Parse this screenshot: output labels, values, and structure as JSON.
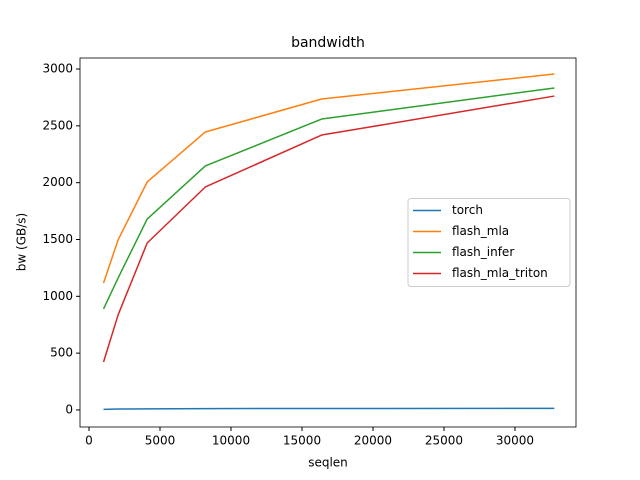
{
  "chart_data": {
    "type": "line",
    "title": "bandwidth",
    "xlabel": "seqlen",
    "ylabel": "bw (GB/s)",
    "x": [
      1024,
      2048,
      4096,
      8192,
      16384,
      32768
    ],
    "series": [
      {
        "name": "torch",
        "color": "#1f77b4",
        "values": [
          5,
          8,
          10,
          12,
          13,
          14
        ]
      },
      {
        "name": "flash_mla",
        "color": "#ff7f0e",
        "values": [
          1117,
          1496,
          2006,
          2446,
          2736,
          2956
        ]
      },
      {
        "name": "flash_infer",
        "color": "#2ca02c",
        "values": [
          889,
          1161,
          1680,
          2147,
          2560,
          2833
        ]
      },
      {
        "name": "flash_mla_triton",
        "color": "#d62728",
        "values": [
          422,
          836,
          1469,
          1962,
          2419,
          2762
        ]
      }
    ],
    "xlim": [
      -634,
      34296
    ],
    "xticks": [
      0,
      5000,
      10000,
      15000,
      20000,
      25000,
      30000
    ],
    "ylim": [
      -150,
      3097
    ],
    "yticks": [
      0,
      500,
      1000,
      1500,
      2000,
      2500,
      3000
    ],
    "legend": "center right",
    "grid": false
  }
}
